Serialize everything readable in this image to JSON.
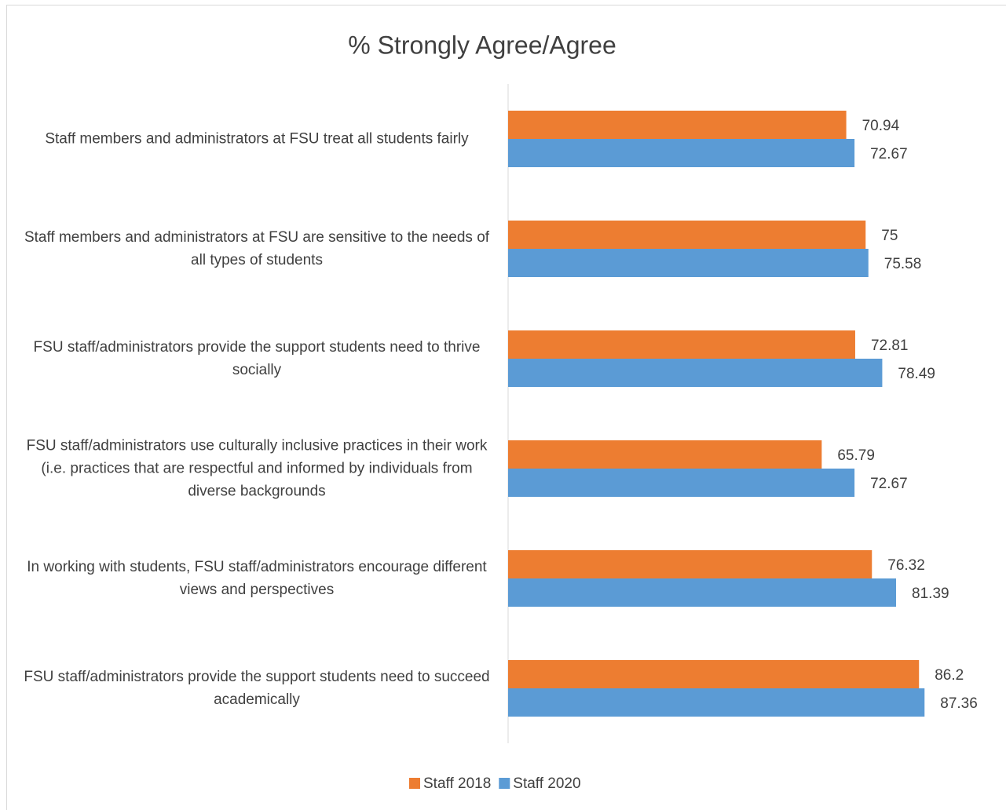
{
  "chart_data": {
    "type": "barh",
    "title": "% Strongly Agree/Agree",
    "categories": [
      "Staff members and administrators at FSU treat all students fairly",
      "Staff members and administrators at FSU are sensitive to the needs of all types of students",
      "FSU staff/administrators provide the support students need to thrive socially",
      "FSU staff/administrators use culturally inclusive practices in their work (i.e. practices that are respectful and informed by individuals from diverse backgrounds",
      "In working with students, FSU staff/administrators encourage different views and perspectives",
      "FSU staff/administrators provide the support students need to succeed academically"
    ],
    "series": [
      {
        "name": "Staff 2018",
        "color": "#ED7D31",
        "values": [
          70.94,
          75,
          72.81,
          65.79,
          76.32,
          86.2
        ]
      },
      {
        "name": "Staff 2020",
        "color": "#5B9BD5",
        "values": [
          72.67,
          75.58,
          78.49,
          72.67,
          81.39,
          87.36
        ]
      }
    ],
    "xlim": [
      0,
      100
    ],
    "legend": "bottom"
  }
}
